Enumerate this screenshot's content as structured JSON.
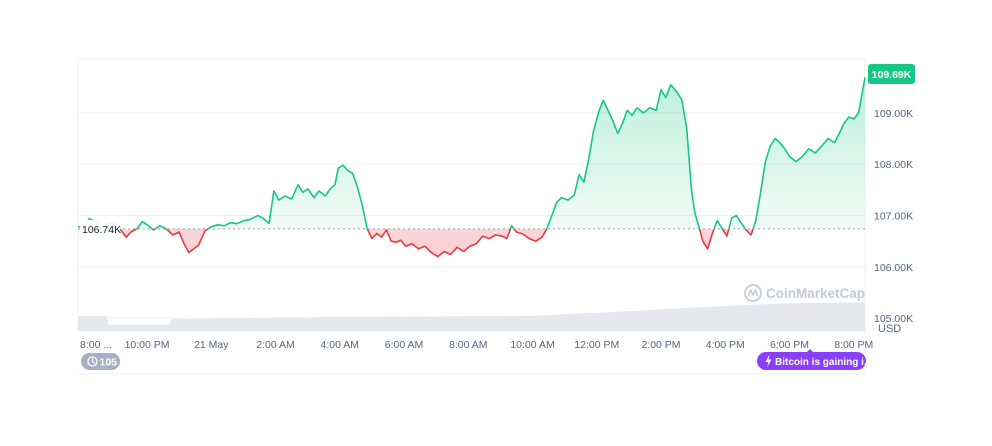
{
  "chart_data": {
    "type": "area",
    "currency_label": "USD",
    "baseline_value": 106.74,
    "baseline_label": "106.74K",
    "last_value": 109.69,
    "last_value_label": "109.69K",
    "ylim": [
      104.75,
      110.05
    ],
    "y_ticks": [
      {
        "value": 105.0,
        "label": "105.00K"
      },
      {
        "value": 106.0,
        "label": "106.00K"
      },
      {
        "value": 107.0,
        "label": "107.00K"
      },
      {
        "value": 108.0,
        "label": "108.00K"
      },
      {
        "value": 109.0,
        "label": "109.00K"
      }
    ],
    "x_range": [
      19.85,
      44.35
    ],
    "x_ticks": [
      {
        "t": 20.0,
        "label": "8:00 ..."
      },
      {
        "t": 22.0,
        "label": "10:00 PM"
      },
      {
        "t": 24.0,
        "label": "21 May"
      },
      {
        "t": 26.0,
        "label": "2:00 AM"
      },
      {
        "t": 28.0,
        "label": "4:00 AM"
      },
      {
        "t": 30.0,
        "label": "6:00 AM"
      },
      {
        "t": 32.0,
        "label": "8:00 AM"
      },
      {
        "t": 34.0,
        "label": "10:00 AM"
      },
      {
        "t": 36.0,
        "label": "12:00 PM"
      },
      {
        "t": 38.0,
        "label": "2:00 PM"
      },
      {
        "t": 40.0,
        "label": "4:00 PM"
      },
      {
        "t": 42.0,
        "label": "6:00 PM"
      },
      {
        "t": 44.0,
        "label": "8:00 PM"
      }
    ],
    "series": [
      {
        "points": [
          [
            19.85,
            106.78
          ],
          [
            20.05,
            106.78
          ],
          [
            20.2,
            106.94
          ],
          [
            20.4,
            106.88
          ],
          [
            20.6,
            106.78
          ],
          [
            20.8,
            106.85
          ],
          [
            21.0,
            106.84
          ],
          [
            21.2,
            106.7
          ],
          [
            21.35,
            106.58
          ],
          [
            21.5,
            106.68
          ],
          [
            21.7,
            106.75
          ],
          [
            21.85,
            106.88
          ],
          [
            22.0,
            106.82
          ],
          [
            22.2,
            106.72
          ],
          [
            22.4,
            106.8
          ],
          [
            22.6,
            106.74
          ],
          [
            22.8,
            106.62
          ],
          [
            23.0,
            106.68
          ],
          [
            23.15,
            106.45
          ],
          [
            23.3,
            106.28
          ],
          [
            23.45,
            106.35
          ],
          [
            23.6,
            106.42
          ],
          [
            23.8,
            106.7
          ],
          [
            24.0,
            106.78
          ],
          [
            24.2,
            106.82
          ],
          [
            24.4,
            106.8
          ],
          [
            24.6,
            106.86
          ],
          [
            24.8,
            106.84
          ],
          [
            25.0,
            106.9
          ],
          [
            25.2,
            106.92
          ],
          [
            25.45,
            107.0
          ],
          [
            25.6,
            106.95
          ],
          [
            25.8,
            106.85
          ],
          [
            25.95,
            107.48
          ],
          [
            26.1,
            107.3
          ],
          [
            26.3,
            107.38
          ],
          [
            26.5,
            107.32
          ],
          [
            26.7,
            107.6
          ],
          [
            26.85,
            107.45
          ],
          [
            27.0,
            107.52
          ],
          [
            27.2,
            107.35
          ],
          [
            27.35,
            107.48
          ],
          [
            27.55,
            107.38
          ],
          [
            27.7,
            107.52
          ],
          [
            27.85,
            107.6
          ],
          [
            27.95,
            107.92
          ],
          [
            28.1,
            107.98
          ],
          [
            28.25,
            107.88
          ],
          [
            28.4,
            107.82
          ],
          [
            28.55,
            107.55
          ],
          [
            28.7,
            107.2
          ],
          [
            28.85,
            106.75
          ],
          [
            29.0,
            106.55
          ],
          [
            29.15,
            106.65
          ],
          [
            29.3,
            106.58
          ],
          [
            29.45,
            106.72
          ],
          [
            29.6,
            106.5
          ],
          [
            29.75,
            106.48
          ],
          [
            29.9,
            106.52
          ],
          [
            30.05,
            106.4
          ],
          [
            30.25,
            106.45
          ],
          [
            30.45,
            106.35
          ],
          [
            30.65,
            106.4
          ],
          [
            30.85,
            106.28
          ],
          [
            31.05,
            106.2
          ],
          [
            31.25,
            106.3
          ],
          [
            31.45,
            106.24
          ],
          [
            31.65,
            106.38
          ],
          [
            31.85,
            106.3
          ],
          [
            32.05,
            106.4
          ],
          [
            32.25,
            106.45
          ],
          [
            32.45,
            106.6
          ],
          [
            32.65,
            106.55
          ],
          [
            32.85,
            106.62
          ],
          [
            33.05,
            106.6
          ],
          [
            33.2,
            106.55
          ],
          [
            33.35,
            106.8
          ],
          [
            33.5,
            106.68
          ],
          [
            33.7,
            106.64
          ],
          [
            33.9,
            106.55
          ],
          [
            34.1,
            106.5
          ],
          [
            34.3,
            106.58
          ],
          [
            34.45,
            106.75
          ],
          [
            34.6,
            107.0
          ],
          [
            34.75,
            107.25
          ],
          [
            34.9,
            107.35
          ],
          [
            35.1,
            107.3
          ],
          [
            35.3,
            107.4
          ],
          [
            35.45,
            107.8
          ],
          [
            35.6,
            107.65
          ],
          [
            35.75,
            108.1
          ],
          [
            35.9,
            108.65
          ],
          [
            36.05,
            109.0
          ],
          [
            36.2,
            109.25
          ],
          [
            36.35,
            109.05
          ],
          [
            36.5,
            108.85
          ],
          [
            36.65,
            108.6
          ],
          [
            36.8,
            108.8
          ],
          [
            36.95,
            109.05
          ],
          [
            37.1,
            108.95
          ],
          [
            37.25,
            109.1
          ],
          [
            37.45,
            109.0
          ],
          [
            37.65,
            109.1
          ],
          [
            37.85,
            109.05
          ],
          [
            38.0,
            109.45
          ],
          [
            38.15,
            109.3
          ],
          [
            38.3,
            109.55
          ],
          [
            38.5,
            109.4
          ],
          [
            38.65,
            109.25
          ],
          [
            38.8,
            108.7
          ],
          [
            38.95,
            107.5
          ],
          [
            39.05,
            107.05
          ],
          [
            39.15,
            106.85
          ],
          [
            39.3,
            106.5
          ],
          [
            39.45,
            106.35
          ],
          [
            39.6,
            106.65
          ],
          [
            39.75,
            106.9
          ],
          [
            39.9,
            106.75
          ],
          [
            40.05,
            106.6
          ],
          [
            40.2,
            106.95
          ],
          [
            40.35,
            107.0
          ],
          [
            40.5,
            106.85
          ],
          [
            40.65,
            106.72
          ],
          [
            40.8,
            106.62
          ],
          [
            40.95,
            106.9
          ],
          [
            41.1,
            107.45
          ],
          [
            41.25,
            108.05
          ],
          [
            41.4,
            108.35
          ],
          [
            41.55,
            108.5
          ],
          [
            41.7,
            108.42
          ],
          [
            41.85,
            108.3
          ],
          [
            42.0,
            108.15
          ],
          [
            42.2,
            108.05
          ],
          [
            42.4,
            108.15
          ],
          [
            42.6,
            108.3
          ],
          [
            42.8,
            108.22
          ],
          [
            43.0,
            108.35
          ],
          [
            43.2,
            108.5
          ],
          [
            43.4,
            108.42
          ],
          [
            43.55,
            108.6
          ],
          [
            43.7,
            108.8
          ],
          [
            43.85,
            108.92
          ],
          [
            44.0,
            108.88
          ],
          [
            44.15,
            109.0
          ],
          [
            44.35,
            109.69
          ]
        ]
      }
    ],
    "volume": [
      [
        19.85,
        0.33
      ],
      [
        20.75,
        0.33
      ],
      [
        20.8,
        0.14
      ],
      [
        22.7,
        0.14
      ],
      [
        22.75,
        0.26
      ],
      [
        26.0,
        0.3
      ],
      [
        30.0,
        0.32
      ],
      [
        34.0,
        0.34
      ],
      [
        37.0,
        0.44
      ],
      [
        39.5,
        0.54
      ],
      [
        42.0,
        0.62
      ],
      [
        44.35,
        0.64
      ]
    ],
    "colors": {
      "up_line": "#16c784",
      "down_line": "#ea3943",
      "up_fill": "#16c784",
      "down_fill": "#ea3943",
      "volume": "#e6e8ee",
      "grid": "#eff2f5",
      "text": "#58667e",
      "badge": "#16c784",
      "pill_gray": "#a6b0c3",
      "pill_purple": "#8a3ffc"
    }
  },
  "watermark": {
    "text": "CoinMarketCap",
    "icon": "coinmarketcap-logo-icon"
  },
  "history_pill": {
    "icon": "history-clock-icon",
    "label": "105"
  },
  "news_pill": {
    "icon": "lightning-icon",
    "label": "Bitcoin is gaining i..."
  }
}
